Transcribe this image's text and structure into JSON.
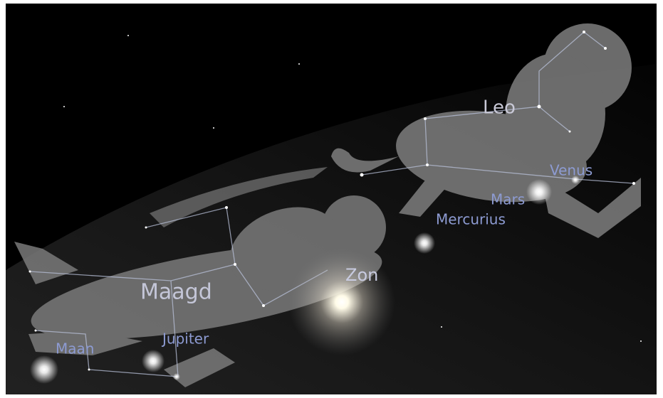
{
  "sky": {
    "constellations": [
      "Leo",
      "Maagd"
    ],
    "bodies": [
      "Venus",
      "Mars",
      "Mercurius",
      "Zon",
      "Jupiter",
      "Maan"
    ]
  }
}
